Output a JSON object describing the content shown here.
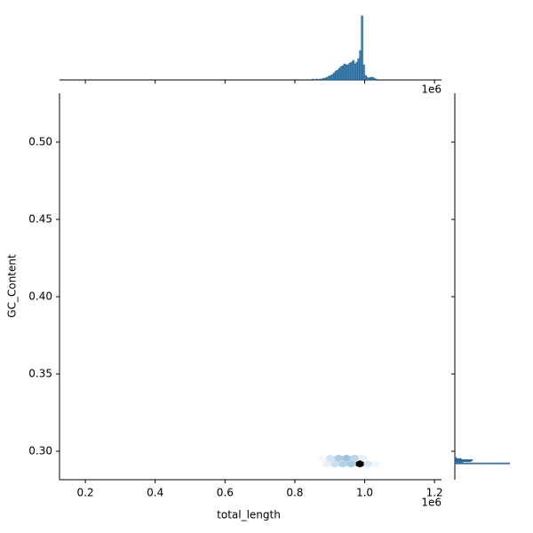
{
  "chart_data": {
    "type": "hexbin-joint",
    "xlabel": "total_length",
    "ylabel": "GC_Content",
    "x_offset_label": "1e6",
    "xlim": [
      0.126,
      1.22
    ],
    "ylim": [
      0.2816,
      0.5316
    ],
    "xticks": [
      0.2,
      0.4,
      0.6,
      0.8,
      {
        "value": 1,
        "label": "1.0"
      },
      1.2
    ],
    "yticks": [
      {
        "value": 0.3,
        "label": "0.30"
      },
      {
        "value": 0.35,
        "label": "0.35"
      },
      {
        "value": 0.4,
        "label": "0.40"
      },
      {
        "value": 0.45,
        "label": "0.45"
      },
      {
        "value": 0.5,
        "label": "0.50"
      }
    ],
    "cmap": [
      "#ffffff",
      "#1f77b4",
      "#000000"
    ],
    "hexes": {
      "x": [
        0.879,
        0.902,
        0.925,
        0.948,
        0.971,
        0.994,
        0.892,
        0.915,
        0.938,
        0.961,
        0.986,
        1.009,
        1.032
      ],
      "y": [
        0.2955,
        0.2955,
        0.2955,
        0.2955,
        0.2955,
        0.2955,
        0.2918,
        0.2918,
        0.2918,
        0.2918,
        0.2918,
        0.2918,
        0.2918
      ],
      "counts": [
        3,
        12,
        22,
        26,
        18,
        6,
        6,
        14,
        20,
        24,
        100,
        10,
        4
      ]
    },
    "top_hist": {
      "color": "#1f77b4",
      "ylim": [
        0,
        75
      ],
      "bins": [
        0.85,
        0.855,
        0.86,
        0.865,
        0.87,
        0.875,
        0.88,
        0.885,
        0.89,
        0.895,
        0.9,
        0.905,
        0.91,
        0.915,
        0.92,
        0.925,
        0.93,
        0.935,
        0.94,
        0.945,
        0.95,
        0.955,
        0.96,
        0.965,
        0.97,
        0.975,
        0.98,
        0.985,
        0.99,
        0.995,
        1.0,
        1.005,
        1.01,
        1.015,
        1.02,
        1.025,
        1.03,
        1.035,
        1.04
      ],
      "counts": [
        1,
        0,
        1,
        0,
        1,
        1,
        2,
        2,
        3,
        4,
        5,
        6,
        8,
        10,
        11,
        13,
        15,
        16,
        18,
        17,
        17,
        19,
        20,
        22,
        18,
        20,
        24,
        33,
        72,
        17,
        5,
        3,
        2,
        3,
        3,
        2,
        1,
        0
      ]
    },
    "right_hist": {
      "color": "#1f77b4",
      "xlim": [
        0,
        75
      ],
      "bins": [
        0.2918,
        0.2925,
        0.2932,
        0.2939,
        0.2946,
        0.2953,
        0.296
      ],
      "counts": [
        68,
        10,
        20,
        22,
        8,
        2
      ]
    }
  }
}
